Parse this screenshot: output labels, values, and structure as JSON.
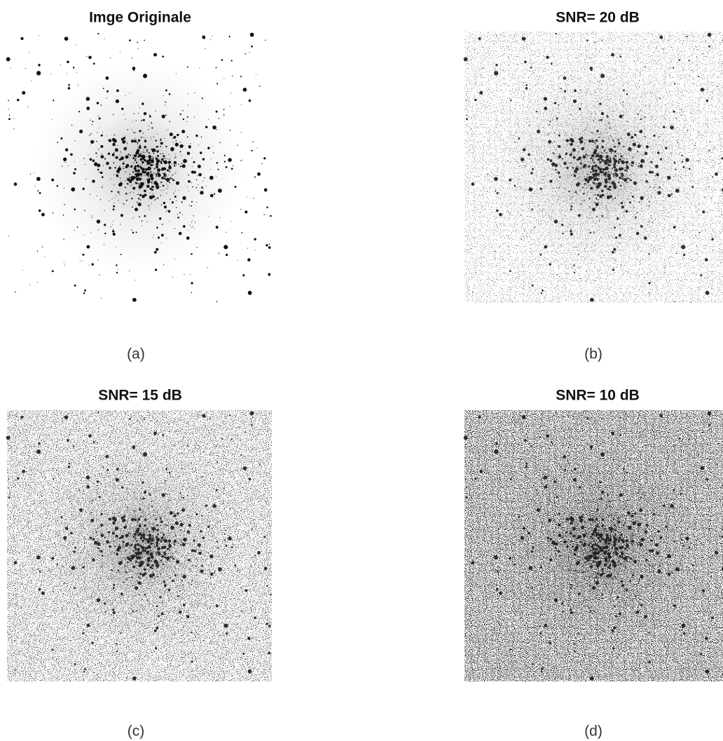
{
  "panels": [
    {
      "title": "Imge Originale",
      "caption": "(a)"
    },
    {
      "title": "SNR= 20 dB",
      "caption": "(b)"
    },
    {
      "title": "SNR= 15 dB",
      "caption": "(c)"
    },
    {
      "title": "SNR= 10 dB",
      "caption": "(d)"
    }
  ]
}
